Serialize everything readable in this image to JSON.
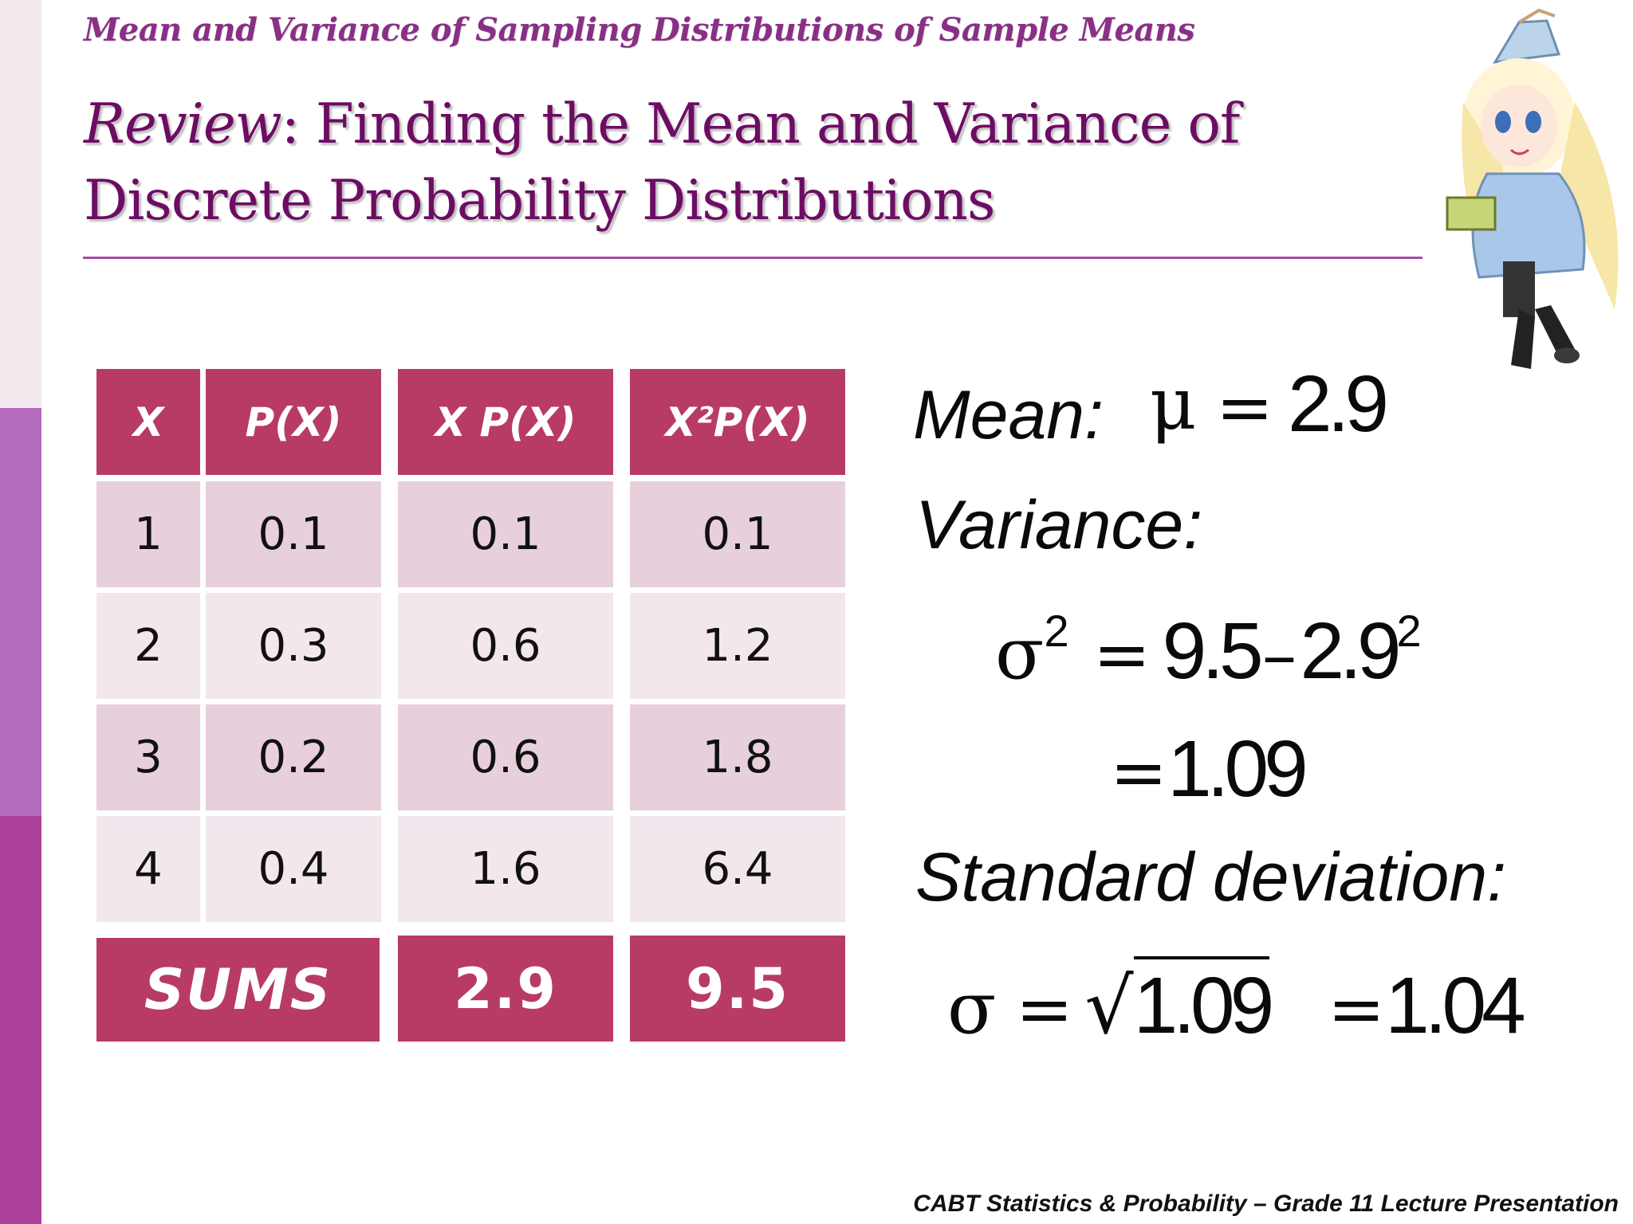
{
  "subtitle": "Mean and Variance of Sampling Distributions of Sample Means",
  "title": {
    "italic_part": "Review",
    "rest": ": Finding the Mean and Variance of Discrete Probability Distributions"
  },
  "table": {
    "headers": [
      "X",
      "P(X)",
      "X P(X)",
      "X²P(X)"
    ],
    "rows": [
      [
        "1",
        "0.1",
        "0.1",
        "0.1"
      ],
      [
        "2",
        "0.3",
        "0.6",
        "1.2"
      ],
      [
        "3",
        "0.2",
        "0.6",
        "1.8"
      ],
      [
        "4",
        "0.4",
        "1.6",
        "6.4"
      ]
    ],
    "sums": {
      "label": "SUMS",
      "xpx": "2.9",
      "x2px": "9.5"
    }
  },
  "formulas": {
    "mean_label": "Mean:",
    "mean_symbol": "μ",
    "equals": "=",
    "mean_value": "2.9",
    "variance_label": "Variance:",
    "sigma": "σ",
    "sup2": "2",
    "var_a": "9.5",
    "minus": "–",
    "var_b": "2.9",
    "var_result": "1.09",
    "sd_label": "Standard deviation:",
    "sqrt": "√",
    "sd_radicand": "1.09",
    "sd_result": "1.04"
  },
  "footer": "CABT Statistics & Probability – Grade 11 Lecture Presentation",
  "colors": {
    "header_fill": "#b83a67",
    "row_dark": "#e7d0db",
    "row_light": "#f3e7ee",
    "title": "#6d0c63",
    "subtitle": "#8a2f86"
  }
}
